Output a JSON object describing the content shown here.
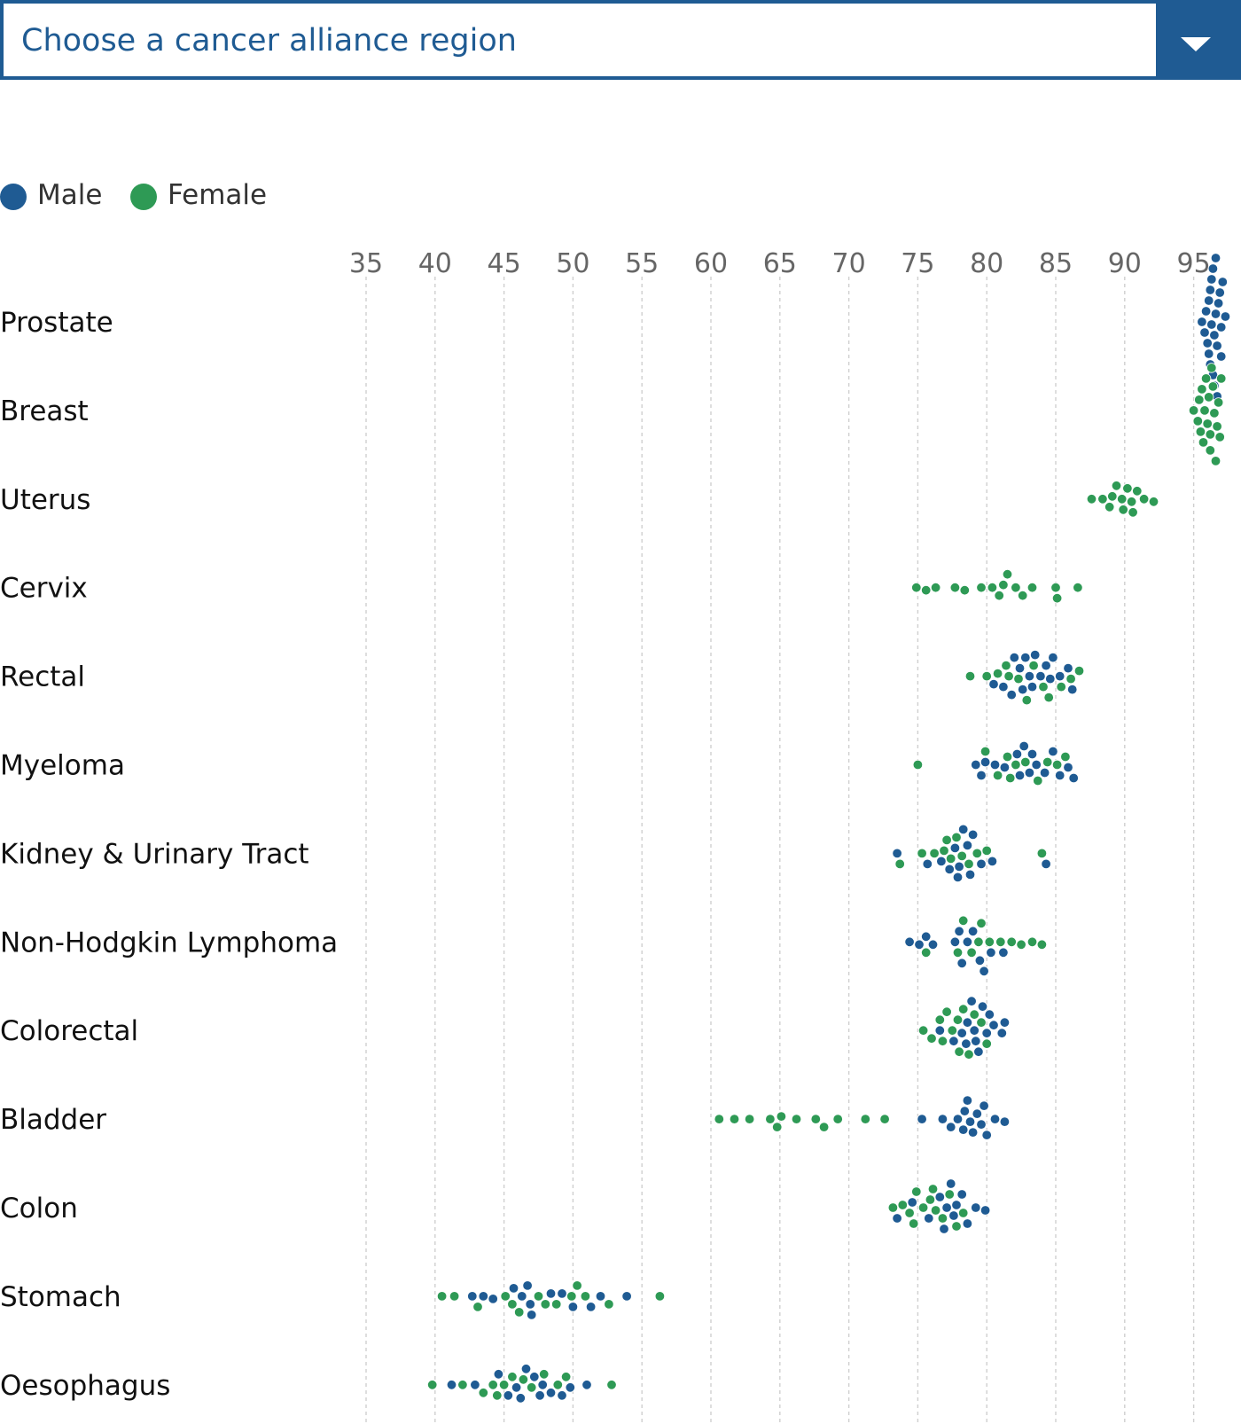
{
  "selector": {
    "label": "Choose a cancer alliance region",
    "icon": "chevron-down-icon"
  },
  "legend": [
    {
      "label": "Male",
      "color": "#1f5b93"
    },
    {
      "label": "Female",
      "color": "#2e9a55"
    }
  ],
  "colors": {
    "male": "#1f5b93",
    "female": "#2e9a55",
    "accent": "#1f5b93",
    "grid": "#cfcfcf"
  },
  "chart_data": {
    "type": "scatter",
    "subtype": "beeswarm",
    "title": "",
    "xlabel": "",
    "ylabel": "",
    "x_ticks": [
      35,
      40,
      45,
      50,
      55,
      60,
      65,
      70,
      75,
      80,
      85,
      90,
      95
    ],
    "xlim": [
      35,
      97.5
    ],
    "grid": "vertical dashed",
    "legend_position": "top-left",
    "categories": [
      "Prostate",
      "Breast",
      "Uterus",
      "Cervix",
      "Rectal",
      "Myeloma",
      "Kidney & Urinary Tract",
      "Non-Hodgkin Lymphoma",
      "Colorectal",
      "Bladder",
      "Colon",
      "Stomach",
      "Oesophagus"
    ],
    "series": [
      {
        "name": "Male",
        "color": "#1f5b93",
        "values": {
          "Prostate": [
            95.6,
            95.8,
            96.0,
            96.1,
            96.2,
            96.3,
            96.4,
            96.5,
            96.6,
            96.7,
            96.8,
            96.9,
            97.0,
            97.1,
            97.3,
            95.9,
            96.1,
            96.3,
            96.5,
            96.7,
            97.0,
            96.2,
            96.4,
            96.6
          ],
          "Breast": [],
          "Uterus": [],
          "Cervix": [],
          "Rectal": [
            80.5,
            81.2,
            81.8,
            82.4,
            82.8,
            83.1,
            83.5,
            83.9,
            84.3,
            84.8,
            85.3,
            85.9,
            86.2,
            82.0,
            83.3,
            84.6,
            82.6
          ],
          "Myeloma": [
            79.2,
            79.6,
            80.6,
            81.3,
            82.2,
            82.7,
            83.1,
            83.6,
            84.2,
            84.8,
            85.3,
            85.9,
            86.3,
            82.4,
            83.3,
            79.9
          ],
          "Kidney & Urinary Tract": [
            73.5,
            75.7,
            76.7,
            77.3,
            77.7,
            78.0,
            78.3,
            78.6,
            79.0,
            79.6,
            80.4,
            84.3,
            77.9,
            78.8
          ],
          "Non-Hodgkin Lymphoma": [
            74.4,
            75.1,
            75.6,
            76.1,
            77.7,
            78.2,
            78.6,
            79.0,
            79.5,
            80.3,
            81.2,
            78.0,
            79.8
          ],
          "Colorectal": [
            76.6,
            77.6,
            78.2,
            78.6,
            78.9,
            79.2,
            79.4,
            79.7,
            80.0,
            80.5,
            81.1,
            81.3,
            79.1,
            80.2,
            78.5
          ],
          "Bladder": [
            75.3,
            76.8,
            77.4,
            77.9,
            78.3,
            78.6,
            78.8,
            79.0,
            79.3,
            79.6,
            80.0,
            80.6,
            81.3,
            78.4,
            79.8
          ],
          "Colon": [
            73.5,
            74.6,
            75.8,
            76.6,
            77.1,
            77.4,
            77.8,
            78.2,
            78.6,
            79.2,
            79.9,
            76.9,
            77.6
          ],
          "Stomach": [
            42.7,
            43.5,
            44.2,
            45.7,
            46.3,
            46.7,
            47.0,
            48.4,
            49.2,
            50.0,
            51.3,
            52.0,
            53.9,
            46.9
          ],
          "Oesophagus": [
            41.2,
            42.9,
            44.6,
            45.3,
            45.9,
            46.6,
            47.2,
            47.8,
            48.4,
            49.2,
            49.8,
            51.0,
            46.2,
            47.6
          ]
        }
      },
      {
        "name": "Female",
        "color": "#2e9a55",
        "values": {
          "Prostate": [],
          "Breast": [
            95.0,
            95.3,
            95.5,
            95.7,
            95.9,
            96.0,
            96.2,
            96.4,
            96.6,
            96.8,
            97.0,
            95.6,
            96.1,
            96.3,
            96.5,
            96.7,
            95.8,
            96.9,
            96.2,
            95.4
          ],
          "Uterus": [
            87.6,
            88.4,
            88.9,
            89.4,
            89.8,
            90.2,
            90.5,
            90.9,
            91.4,
            92.1,
            89.1,
            89.9,
            90.6
          ],
          "Cervix": [
            74.9,
            75.6,
            76.3,
            77.7,
            78.4,
            79.6,
            80.4,
            80.9,
            81.5,
            82.1,
            82.6,
            83.3,
            85.0,
            86.6,
            81.2,
            85.1
          ],
          "Rectal": [
            78.8,
            80.0,
            80.8,
            81.6,
            82.3,
            82.9,
            83.4,
            84.1,
            84.5,
            85.4,
            86.1,
            86.7,
            81.4
          ],
          "Myeloma": [
            75.0,
            79.9,
            80.8,
            81.7,
            82.1,
            82.8,
            83.7,
            84.4,
            85.1,
            85.7,
            81.5
          ],
          "Kidney & Urinary Tract": [
            73.7,
            75.3,
            76.2,
            76.9,
            77.4,
            77.8,
            78.2,
            78.7,
            79.3,
            80.0,
            84.0,
            77.1
          ],
          "Non-Hodgkin Lymphoma": [
            75.6,
            77.9,
            78.3,
            78.9,
            79.6,
            80.2,
            81.0,
            81.8,
            82.5,
            83.3,
            84.0,
            79.4
          ],
          "Colorectal": [
            75.4,
            76.0,
            76.6,
            77.1,
            77.5,
            77.9,
            78.3,
            78.7,
            79.1,
            79.6,
            80.0,
            76.8,
            78.0
          ],
          "Bladder": [
            60.6,
            61.7,
            62.8,
            64.3,
            64.8,
            65.1,
            66.2,
            67.6,
            68.2,
            69.2,
            71.2,
            72.6
          ],
          "Colon": [
            73.2,
            73.9,
            74.4,
            74.9,
            75.4,
            75.9,
            76.3,
            76.8,
            77.3,
            77.8,
            78.3,
            74.7,
            76.1
          ],
          "Stomach": [
            40.5,
            41.4,
            43.1,
            45.1,
            45.6,
            46.1,
            47.5,
            48.0,
            48.8,
            50.3,
            50.9,
            52.6,
            56.3,
            49.9
          ],
          "Oesophagus": [
            39.8,
            42.0,
            43.5,
            44.5,
            45.0,
            45.6,
            46.4,
            47.0,
            47.9,
            48.9,
            49.5,
            52.8,
            44.2
          ]
        }
      }
    ]
  }
}
